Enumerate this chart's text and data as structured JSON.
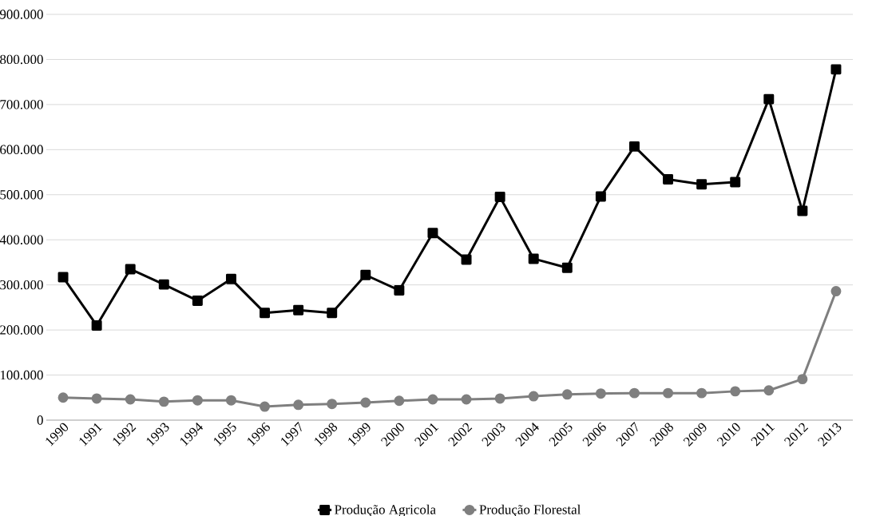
{
  "chart_data": {
    "type": "line",
    "categories": [
      "1990",
      "1991",
      "1992",
      "1993",
      "1994",
      "1995",
      "1996",
      "1997",
      "1998",
      "1999",
      "2000",
      "2001",
      "2002",
      "2003",
      "2004",
      "2005",
      "2006",
      "2007",
      "2008",
      "2009",
      "2010",
      "2011",
      "2012",
      "2013"
    ],
    "series": [
      {
        "name": "Produção Agricola",
        "color": "#000000",
        "marker": "square",
        "values": [
          317000,
          210000,
          335000,
          301000,
          265000,
          313000,
          238000,
          244000,
          238000,
          322000,
          288000,
          415000,
          356000,
          495000,
          358000,
          338000,
          496000,
          607000,
          534000,
          523000,
          528000,
          712000,
          464000,
          778000
        ]
      },
      {
        "name": "Produção Florestal",
        "color": "#7f7f7f",
        "marker": "circle",
        "values": [
          50000,
          48000,
          46000,
          41000,
          44000,
          44000,
          30000,
          34000,
          36000,
          39000,
          43000,
          46000,
          46000,
          48000,
          53000,
          57000,
          59000,
          60000,
          60000,
          60000,
          64000,
          66000,
          91000,
          286000
        ]
      }
    ],
    "ylim": [
      0,
      900000
    ],
    "yticks": [
      {
        "value": 0,
        "label": "0"
      },
      {
        "value": 100000,
        "label": "100.000"
      },
      {
        "value": 200000,
        "label": "200.000"
      },
      {
        "value": 300000,
        "label": "300.000"
      },
      {
        "value": 400000,
        "label": "400.000"
      },
      {
        "value": 500000,
        "label": "500.000"
      },
      {
        "value": 600000,
        "label": "600.000"
      },
      {
        "value": 700000,
        "label": "700.000"
      },
      {
        "value": 800000,
        "label": "800.000"
      },
      {
        "value": 900000,
        "label": "900.000"
      }
    ],
    "grid": "y",
    "legend": "bottom",
    "line_style": "solid"
  }
}
